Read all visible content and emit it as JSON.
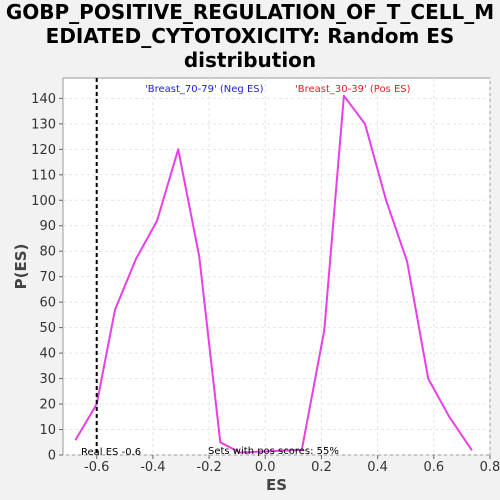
{
  "title_lines": [
    "GOBP_POSITIVE_REGULATION_OF_T_CELL_M",
    "EDIATED_CYTOTOXICITY: Random ES",
    "distribution"
  ],
  "chart_data": {
    "type": "line",
    "xlabel": "ES",
    "ylabel": "P(ES)",
    "xlim": [
      -0.72,
      0.8
    ],
    "ylim": [
      0,
      148
    ],
    "xticks": [
      -0.6,
      -0.4,
      -0.2,
      0.0,
      0.2,
      0.4,
      0.6,
      0.8
    ],
    "xtick_labels": [
      "-0.6",
      "-0.4",
      "-0.2",
      "0.0",
      "0.2",
      "0.4",
      "0.6",
      "0.8"
    ],
    "yticks": [
      0,
      10,
      20,
      30,
      40,
      50,
      60,
      70,
      80,
      90,
      100,
      110,
      120,
      130,
      140
    ],
    "ytick_labels": [
      "0",
      "10",
      "20",
      "30",
      "40",
      "50",
      "60",
      "70",
      "80",
      "90",
      "100",
      "110",
      "120",
      "130",
      "140"
    ],
    "grid": true,
    "series": [
      {
        "color": "#e83fe6",
        "x": [
          -0.675,
          -0.6,
          -0.535,
          -0.46,
          -0.385,
          -0.31,
          -0.235,
          -0.16,
          -0.09,
          0.13,
          0.21,
          0.28,
          0.355,
          0.43,
          0.505,
          0.58,
          0.655,
          0.735
        ],
        "y": [
          6,
          20,
          57,
          77,
          92,
          120,
          78,
          5,
          1,
          2,
          49,
          141,
          130,
          100,
          76,
          30,
          15,
          2
        ]
      }
    ],
    "real_es": -0.6,
    "annotations": {
      "neg_label": "'Breast_70-79' (Neg ES)",
      "pos_label": "'Breast_30-39' (Pos ES)",
      "neg_color": "#2222cc",
      "pos_color": "#dd2222",
      "real_es_label": "Real ES -0.6",
      "pos_scores_label": "Sets with pos scores: 55%"
    }
  }
}
